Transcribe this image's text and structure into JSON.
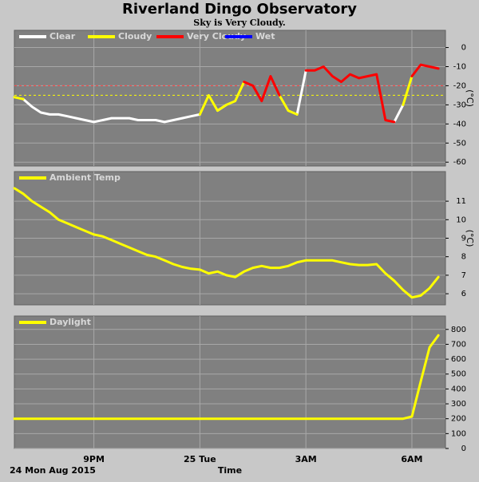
{
  "chart_data": [
    {
      "type": "line",
      "title": "Riverland Dingo Observatory",
      "subtitle": "Sky is Very Cloudy.",
      "y_label": "(°C)",
      "x": [
        18.75,
        19,
        19.25,
        19.5,
        19.75,
        20,
        20.25,
        20.5,
        20.75,
        21,
        21.25,
        21.5,
        21.75,
        22,
        22.25,
        22.5,
        22.75,
        23,
        23.25,
        23.5,
        23.75,
        24,
        24.25,
        24.5,
        24.75,
        25,
        25.25,
        25.5,
        25.75,
        26,
        26.25,
        26.5,
        26.75,
        27,
        27.25,
        27.5,
        27.75,
        28,
        28.25,
        28.5,
        28.75,
        29,
        29.25,
        29.5,
        29.75,
        30,
        30.25,
        30.5,
        30.75
      ],
      "series": [
        {
          "name": "Clear",
          "color": "#ffffff",
          "values": [
            null,
            -27,
            -31,
            -34,
            -35,
            -35,
            -36,
            -37,
            -38,
            -39,
            -38,
            -37,
            -37,
            -37,
            -38,
            -38,
            -38,
            -39,
            -38,
            -37,
            -36,
            -35,
            null,
            -33,
            -30,
            null,
            null,
            null,
            null,
            null,
            null,
            null,
            -35,
            -12,
            null,
            null,
            null,
            null,
            null,
            null,
            null,
            null,
            null,
            -39,
            -30,
            null,
            null,
            null,
            null
          ]
        },
        {
          "name": "Cloudy",
          "color": "#ffff00",
          "values": [
            -26,
            -27,
            null,
            null,
            null,
            null,
            null,
            null,
            null,
            null,
            null,
            null,
            null,
            null,
            null,
            null,
            null,
            null,
            null,
            null,
            null,
            -35,
            -25,
            -33,
            -30,
            -28,
            -18,
            null,
            null,
            null,
            -25,
            -33,
            -35,
            null,
            null,
            null,
            null,
            null,
            null,
            null,
            null,
            null,
            null,
            null,
            -30,
            -15,
            null,
            null,
            null
          ]
        },
        {
          "name": "Very Cloudy",
          "color": "#ff0000",
          "values": [
            null,
            null,
            null,
            null,
            null,
            null,
            null,
            null,
            null,
            null,
            null,
            null,
            null,
            null,
            null,
            null,
            null,
            null,
            null,
            null,
            null,
            null,
            null,
            null,
            null,
            null,
            -18,
            -20,
            -28,
            -15,
            -25,
            null,
            null,
            -12,
            -12,
            -10,
            -15,
            -18,
            -14,
            -16,
            -15,
            -14,
            -38,
            -39,
            null,
            -15,
            -9,
            -10,
            -11
          ]
        },
        {
          "name": "Wet",
          "color": "#0000ff",
          "values": [
            null,
            null,
            null,
            null,
            null,
            null,
            null,
            null,
            null,
            null,
            null,
            null,
            null,
            null,
            null,
            null,
            null,
            null,
            null,
            null,
            null,
            null,
            null,
            null,
            null,
            null,
            null,
            null,
            null,
            null,
            null,
            null,
            null,
            null,
            null,
            null,
            null,
            null,
            null,
            null,
            null,
            null,
            null,
            null,
            null,
            null,
            null,
            null,
            null
          ]
        }
      ],
      "thresholds": [
        {
          "value": -20,
          "color": "#ff4040"
        },
        {
          "value": -25,
          "color": "#ffff00"
        }
      ],
      "xlim": [
        18.75,
        30.95
      ],
      "xticks": [
        21,
        24,
        27,
        30
      ],
      "ylim": [
        -62,
        9
      ],
      "yticks": [
        0,
        -10,
        -20,
        -30,
        -40,
        -50,
        -60
      ],
      "grid": true
    },
    {
      "type": "line",
      "y_label": "(°C)",
      "x": [
        18.75,
        19,
        19.25,
        19.5,
        19.75,
        20,
        20.25,
        20.5,
        20.75,
        21,
        21.25,
        21.5,
        21.75,
        22,
        22.25,
        22.5,
        22.75,
        23,
        23.25,
        23.5,
        23.75,
        24,
        24.25,
        24.5,
        24.75,
        25,
        25.25,
        25.5,
        25.75,
        26,
        26.25,
        26.5,
        26.75,
        27,
        27.25,
        27.5,
        27.75,
        28,
        28.25,
        28.5,
        28.75,
        29,
        29.25,
        29.5,
        29.75,
        30,
        30.25,
        30.5,
        30.75
      ],
      "series": [
        {
          "name": "Ambient Temp",
          "color": "#ffff00",
          "values": [
            11.7,
            11.4,
            11.0,
            10.7,
            10.4,
            10.0,
            9.8,
            9.6,
            9.4,
            9.2,
            9.1,
            8.9,
            8.7,
            8.5,
            8.3,
            8.1,
            8.0,
            7.8,
            7.6,
            7.45,
            7.35,
            7.3,
            7.1,
            7.2,
            7.0,
            6.9,
            7.2,
            7.4,
            7.5,
            7.4,
            7.4,
            7.5,
            7.7,
            7.8,
            7.8,
            7.8,
            7.8,
            7.7,
            7.6,
            7.55,
            7.55,
            7.6,
            7.1,
            6.7,
            6.2,
            5.8,
            5.9,
            6.3,
            6.9
          ]
        }
      ],
      "xlim": [
        18.75,
        30.95
      ],
      "xticks": [
        21,
        24,
        27,
        30
      ],
      "ylim": [
        5.4,
        12.6
      ],
      "yticks": [
        6,
        7,
        8,
        9,
        10,
        11
      ],
      "grid": true
    },
    {
      "type": "line",
      "xlabel": "Time",
      "date_label": "24 Mon Aug 2015",
      "x": [
        18.75,
        19,
        19.25,
        19.5,
        19.75,
        20,
        20.25,
        20.5,
        20.75,
        21,
        21.25,
        21.5,
        21.75,
        22,
        22.25,
        22.5,
        22.75,
        23,
        23.25,
        23.5,
        23.75,
        24,
        24.25,
        24.5,
        24.75,
        25,
        25.25,
        25.5,
        25.75,
        26,
        26.25,
        26.5,
        26.75,
        27,
        27.25,
        27.5,
        27.75,
        28,
        28.25,
        28.5,
        28.75,
        29,
        29.25,
        29.5,
        29.75,
        30,
        30.25,
        30.5,
        30.75
      ],
      "series": [
        {
          "name": "Daylight",
          "color": "#ffff00",
          "values": [
            200,
            200,
            200,
            200,
            200,
            200,
            200,
            200,
            200,
            200,
            200,
            200,
            200,
            200,
            200,
            200,
            200,
            200,
            200,
            200,
            200,
            200,
            200,
            200,
            200,
            200,
            200,
            200,
            200,
            200,
            200,
            200,
            200,
            200,
            200,
            200,
            200,
            200,
            200,
            200,
            200,
            200,
            200,
            200,
            200,
            215,
            450,
            680,
            760
          ]
        }
      ],
      "xlim": [
        18.75,
        30.95
      ],
      "xticks": [
        {
          "value": 21,
          "label": "9PM"
        },
        {
          "value": 24,
          "label": "25 Tue"
        },
        {
          "value": 27,
          "label": "3AM"
        },
        {
          "value": 30,
          "label": "6AM"
        }
      ],
      "ylim": [
        0,
        890
      ],
      "yticks": [
        0,
        100,
        200,
        300,
        400,
        500,
        600,
        700,
        800
      ],
      "grid": true
    }
  ]
}
